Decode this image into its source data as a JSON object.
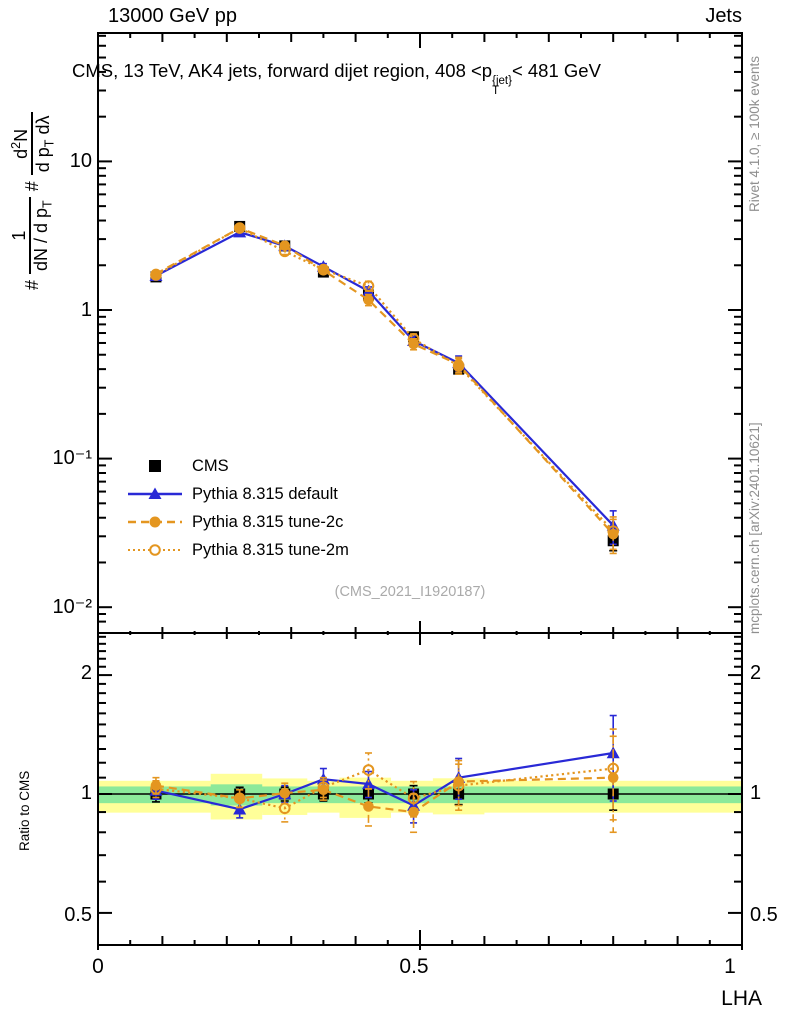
{
  "header": {
    "beam": "13000 GeV pp",
    "analysis_group": "Jets"
  },
  "plot": {
    "title_pre": "CMS, 13 TeV, AK4 jets, forward dijet region, 408 <p",
    "title_sup": "{jet}",
    "title_sub": "T",
    "title_post": "< 481 GeV",
    "watermark": "(CMS_2021_I1920187)"
  },
  "ylabel": {
    "hash1": "#",
    "frac1_num": "1",
    "frac1_den_pre": "dN / d p",
    "frac1_den_sub": "T",
    "hash2": "#",
    "frac2_num_pre": "d",
    "frac2_num_sup": "2",
    "frac2_num_post": "N",
    "frac2_den_pre": "d p",
    "frac2_den_sub": "T",
    "frac2_den_post": " dλ"
  },
  "right_margin": {
    "generator": "Rivet 4.1.0, ≥ 100k events",
    "site": "mcplots.cern.ch [arXiv:2401.10621]"
  },
  "ratio_label": "Ratio to CMS",
  "xaxis": {
    "label": "LHA",
    "tick_labels": [
      "0",
      "0.5",
      "1"
    ]
  },
  "yaxis_main": {
    "tick_labels": [
      "10",
      "1",
      "10⁻¹",
      "10⁻²"
    ]
  },
  "yaxis_ratio": {
    "tick_labels_left": [
      "2",
      "1",
      "0.5"
    ],
    "tick_labels_right": [
      "2",
      "1",
      "0.5"
    ]
  },
  "legend": {
    "items": [
      {
        "label": "CMS"
      },
      {
        "label": "Pythia 8.315 default"
      },
      {
        "label": "Pythia 8.315 tune-2c"
      },
      {
        "label": "Pythia 8.315 tune-2m"
      }
    ]
  },
  "colors": {
    "blue": "#2929d6",
    "orange": "#e49620",
    "black": "#000000",
    "band_yellow": "#ffff99",
    "band_green": "#8ce99a",
    "gray_text": "#8f8f8f",
    "watermark": "#aaaaaa"
  },
  "chart_data": {
    "type": "line",
    "title": "CMS, 13 TeV, AK4 jets, forward dijet region, 408 <p_T^{jet}< 481 GeV",
    "xlabel": "LHA",
    "ylabel": "# 1/(dN/dp_T) d^2N/(dp_T dlambda)",
    "x": [
      0.09,
      0.22,
      0.29,
      0.35,
      0.42,
      0.49,
      0.56,
      0.8
    ],
    "xlim": [
      0,
      1
    ],
    "main_panel": {
      "ylog": true,
      "ylim": [
        0.007,
        73
      ],
      "ytick_values": [
        10,
        1,
        0.1,
        0.01
      ],
      "cms": {
        "name": "CMS",
        "marker": "square",
        "values": [
          1.67,
          3.65,
          2.7,
          1.8,
          1.26,
          0.66,
          0.4,
          0.028
        ],
        "err": [
          0.1,
          0.2,
          0.15,
          0.1,
          0.08,
          0.04,
          0.025,
          0.004
        ]
      },
      "series": [
        {
          "name": "Pythia 8.315 default",
          "color": "#2929d6",
          "style": "solid",
          "marker": "triangle",
          "values": [
            1.7,
            3.34,
            2.7,
            1.96,
            1.34,
            0.62,
            0.44,
            0.0355
          ],
          "err": [
            0.07,
            0.11,
            0.1,
            0.09,
            0.09,
            0.05,
            0.05,
            0.009
          ]
        },
        {
          "name": "Pythia 8.315 tune-2c",
          "color": "#e49620",
          "style": "dashed",
          "marker": "circle",
          "values": [
            1.75,
            3.56,
            2.71,
            1.85,
            1.17,
            0.59,
            0.43,
            0.031
          ],
          "err": [
            0.08,
            0.12,
            0.11,
            0.08,
            0.1,
            0.05,
            0.05,
            0.008
          ]
        },
        {
          "name": "Pythia 8.315 tune-2m",
          "color": "#e49620",
          "style": "dotted",
          "marker": "circle-open",
          "values": [
            1.72,
            3.56,
            2.48,
            1.87,
            1.45,
            0.64,
            0.42,
            0.0325
          ],
          "err": [
            0.08,
            0.12,
            0.12,
            0.08,
            0.11,
            0.05,
            0.05,
            0.008
          ]
        }
      ]
    },
    "ratio_panel": {
      "ylog": true,
      "ylim": [
        0.415,
        2.56
      ],
      "ytick_values": [
        2,
        1,
        0.5
      ],
      "reference_line": 1,
      "bands": {
        "yellow": [
          [
            0,
            1,
            0.897,
            1.08
          ],
          [
            0.175,
            0.255,
            0.862,
            1.125
          ],
          [
            0.255,
            0.325,
            0.885,
            1.095
          ],
          [
            0.375,
            0.455,
            0.87,
            1.1
          ],
          [
            0.52,
            0.6,
            0.888,
            1.096
          ]
        ],
        "green": [
          [
            0,
            1,
            0.948,
            1.045
          ],
          [
            0.175,
            0.255,
            0.935,
            1.058
          ]
        ]
      },
      "cms_ratio_err": [
        0.045,
        0.04,
        0.04,
        0.04,
        0.05,
        0.05,
        0.06,
        0.09
      ],
      "series": [
        {
          "name": "Pythia 8.315 default",
          "color": "#2929d6",
          "style": "solid",
          "marker": "triangle",
          "values": [
            1.02,
            0.915,
            1.0,
            1.09,
            1.06,
            0.935,
            1.1,
            1.27
          ],
          "err": [
            0.05,
            0.045,
            0.05,
            0.07,
            0.08,
            0.09,
            0.13,
            0.31
          ]
        },
        {
          "name": "Pythia 8.315 tune-2c",
          "color": "#e49620",
          "style": "dashed",
          "marker": "circle",
          "values": [
            1.05,
            0.975,
            1.005,
            1.025,
            0.93,
            0.9,
            1.075,
            1.1
          ],
          "err": [
            0.05,
            0.05,
            0.06,
            0.06,
            0.1,
            0.1,
            0.14,
            0.3
          ]
        },
        {
          "name": "Pythia 8.315 tune-2m",
          "color": "#e49620",
          "style": "dotted",
          "marker": "circle-open",
          "values": [
            1.03,
            0.975,
            0.92,
            1.04,
            1.15,
            0.975,
            1.05,
            1.16
          ],
          "err": [
            0.05,
            0.05,
            0.07,
            0.06,
            0.12,
            0.1,
            0.14,
            0.3
          ]
        }
      ]
    }
  }
}
